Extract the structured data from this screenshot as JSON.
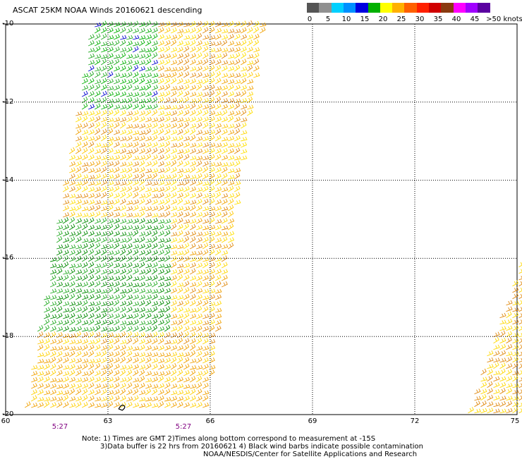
{
  "title": "ASCAT 25KM NOAA Winds 20160621 descending",
  "speed_scale": {
    "labels": [
      "0",
      "5",
      "10",
      "15",
      "20",
      "25",
      "30",
      "35",
      "40",
      "45",
      ">50 knots"
    ],
    "colors": [
      "#555555",
      "#909090",
      "#00d0ff",
      "#0090ff",
      "#0000e0",
      "#00b000",
      "#ffff00",
      "#ffb000",
      "#ff6000",
      "#ff2000",
      "#d00000",
      "#8a3a10",
      "#ff00ff",
      "#a000ff",
      "#5a00a0"
    ]
  },
  "map": {
    "lat_labels": [
      "-10",
      "-12",
      "-14",
      "-16",
      "-18",
      "-20"
    ],
    "lon_labels": [
      "60",
      "63",
      "66",
      "69",
      "72",
      "75"
    ],
    "lat_values": [
      -10,
      -12,
      -14,
      -16,
      -18,
      -20
    ],
    "lon_values": [
      60,
      63,
      66,
      69,
      72,
      75
    ],
    "time_labels": [
      "5:27",
      "5:27"
    ],
    "gridline_style": "dotted",
    "swaths": [
      {
        "name": "main-pass",
        "corners": [
          [
            62.5,
            -10
          ],
          [
            67.5,
            -10
          ],
          [
            65.8,
            -20
          ],
          [
            60.5,
            -20
          ]
        ]
      },
      {
        "name": "east-pass",
        "corners": [
          [
            75.3,
            -15.5
          ],
          [
            75.3,
            -20
          ],
          [
            73.5,
            -20
          ]
        ]
      }
    ],
    "contamination_marker_lon_lat": [
      63.4,
      -19.8
    ]
  },
  "notes": [
    "Note: 1) Times are GMT 2)Times along bottom correspond to measurement at -15S",
    "3)Data buffer is 22 hrs from 20160621 4) Black wind barbs indicate possible contamination",
    "NOAA/NESDIS/Center for Satellite Applications and Research"
  ]
}
